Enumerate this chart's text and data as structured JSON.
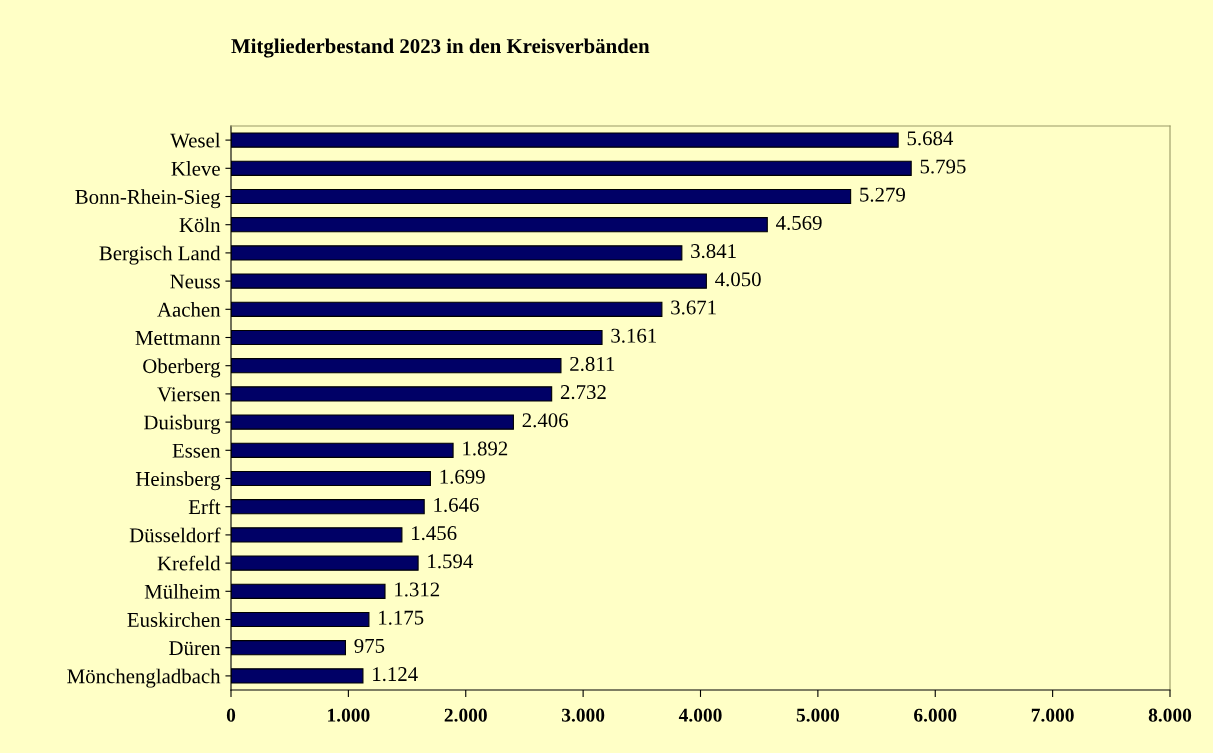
{
  "chart_data": {
    "type": "bar",
    "orientation": "horizontal",
    "title": "Mitgliederbestand 2023 in den Kreisverbänden",
    "categories": [
      "Wesel",
      "Kleve",
      "Bonn-Rhein-Sieg",
      "Köln",
      "Bergisch Land",
      "Neuss",
      "Aachen",
      "Mettmann",
      "Oberberg",
      "Viersen",
      "Duisburg",
      "Essen",
      "Heinsberg",
      "Erft",
      "Düsseldorf",
      "Krefeld",
      "Mülheim",
      "Euskirchen",
      "Düren",
      "Mönchengladbach"
    ],
    "values": [
      5684,
      5795,
      5279,
      4569,
      3841,
      4050,
      3671,
      3161,
      2811,
      2732,
      2406,
      1892,
      1699,
      1646,
      1456,
      1594,
      1312,
      1175,
      975,
      1124
    ],
    "value_labels": [
      "5.684",
      "5.795",
      "5.279",
      "4.569",
      "3.841",
      "4.050",
      "3.671",
      "3.161",
      "2.811",
      "2.732",
      "2.406",
      "1.892",
      "1.699",
      "1.646",
      "1.456",
      "1.594",
      "1.312",
      "1.175",
      "975",
      "1.124"
    ],
    "color": "#000066",
    "xlim": [
      0,
      8000
    ],
    "xticks": [
      0,
      {
        "value": 1000,
        "label": "1.000"
      },
      {
        "value": 2000,
        "label": "2.000"
      },
      {
        "value": 3000,
        "label": "3.000"
      },
      {
        "value": 4000,
        "label": "4.000"
      },
      {
        "value": 5000,
        "label": "5.000"
      },
      {
        "value": 6000,
        "label": "6.000"
      },
      {
        "value": 7000,
        "label": "7.000"
      },
      {
        "value": 8000,
        "label": "8.000"
      }
    ],
    "grid": false,
    "legend": false
  }
}
